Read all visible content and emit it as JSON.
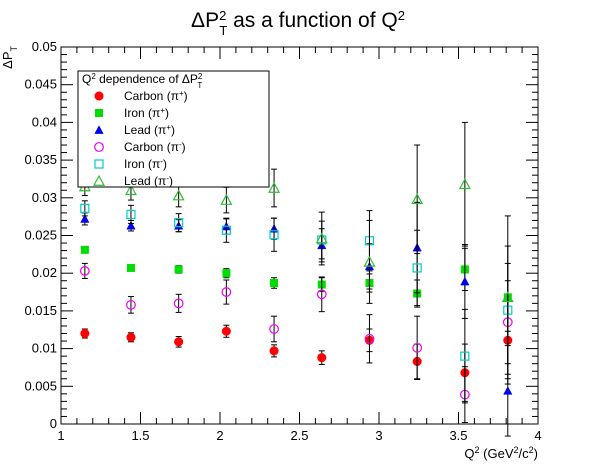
{
  "chart_data": {
    "type": "scatter",
    "title": {
      "main": "ΔP",
      "sup": "2",
      "sub": "T",
      "tail": " as a function of Q",
      "tail_sup": "2"
    },
    "xlabel": {
      "main": "Q",
      "sup": "2",
      "mid": " (GeV",
      "sup2": "2",
      "end": "/c",
      "sup3": "2",
      "close": ")"
    },
    "ylabel": {
      "main": "ΔP",
      "sub": "T"
    },
    "xlim": [
      1,
      4
    ],
    "ylim": [
      0,
      0.05
    ],
    "x_ticks": [
      "1",
      "1.5",
      "2",
      "2.5",
      "3",
      "3.5",
      "4"
    ],
    "y_ticks": [
      "0",
      "0.005",
      "0.01",
      "0.015",
      "0.02",
      "0.025",
      "0.03",
      "0.035",
      "0.04",
      "0.045",
      "0.05"
    ],
    "legend": {
      "title": {
        "main": "Q",
        "sup": "2",
        "mid": " dependence of ΔP",
        "sup2": "2",
        "sub2": "T"
      },
      "placement": "top-left"
    },
    "x": [
      1.15,
      1.44,
      1.74,
      2.04,
      2.34,
      2.64,
      2.94,
      3.24,
      3.54,
      3.81
    ],
    "series": [
      {
        "name": "Carbon (π",
        "charge": "+",
        "name_end": ")",
        "marker": "filled-circle",
        "color": "#ff0000",
        "values": [
          0.012,
          0.0115,
          0.0109,
          0.0123,
          0.0097,
          0.0088,
          0.0111,
          0.0083,
          0.0068,
          0.0111
        ],
        "errors": [
          0.0006,
          0.0006,
          0.0007,
          0.0008,
          0.0008,
          0.0009,
          0.0015,
          0.0023,
          0.0038,
          0.0058
        ]
      },
      {
        "name": "Iron (π",
        "charge": "+",
        "name_end": ")",
        "marker": "filled-square",
        "color": "#00dd00",
        "values": [
          0.0231,
          0.0207,
          0.0205,
          0.02,
          0.0187,
          0.0185,
          0.0187,
          0.0173,
          0.0205,
          0.0168
        ],
        "errors": [
          0.0004,
          0.0004,
          0.0005,
          0.0006,
          0.0007,
          0.0009,
          0.0012,
          0.0018,
          0.0028,
          0.0045
        ]
      },
      {
        "name": "Lead (π",
        "charge": "+",
        "name_end": ")",
        "marker": "filled-triangle",
        "color": "#0000ee",
        "values": [
          0.0272,
          0.0263,
          0.0263,
          0.0262,
          0.0259,
          0.0237,
          0.0209,
          0.0234,
          0.0189,
          0.0044
        ],
        "errors": [
          0.0008,
          0.0007,
          0.0008,
          0.001,
          0.0014,
          0.0022,
          0.003,
          0.006,
          0.0049,
          0.006
        ]
      },
      {
        "name": "Carbon (π",
        "charge": "-",
        "name_end": ")",
        "marker": "open-circle",
        "color": "#ee00ee",
        "values": [
          0.0203,
          0.0158,
          0.016,
          0.0175,
          0.0126,
          0.0172,
          0.0113,
          0.0101,
          0.0039,
          0.0135
        ],
        "errors": [
          0.001,
          0.0011,
          0.0012,
          0.0016,
          0.0017,
          0.0023,
          0.0032,
          0.0042,
          0.0037,
          0.0055
        ]
      },
      {
        "name": "Iron (π",
        "charge": "-",
        "name_end": ")",
        "marker": "open-square",
        "color": "#00cccc",
        "values": [
          0.0286,
          0.0278,
          0.0267,
          0.0257,
          0.0251,
          0.0244,
          0.0243,
          0.0207,
          0.009,
          0.0151
        ],
        "errors": [
          0.001,
          0.0012,
          0.0012,
          0.0016,
          0.0022,
          0.0025,
          0.004,
          0.005,
          0.0062,
          0.0085
        ]
      },
      {
        "name": "Lead (π",
        "charge": "-",
        "name_end": ")",
        "marker": "open-triangle",
        "color": "#33bb33",
        "values": [
          0.0315,
          0.031,
          0.0303,
          0.0297,
          0.0313,
          0.0246,
          0.0215,
          0.0298,
          0.0318,
          0.0168
        ],
        "errors": [
          0.0012,
          0.0013,
          0.0015,
          0.0017,
          0.0025,
          0.0035,
          0.0055,
          0.0072,
          0.0082,
          0.0108
        ]
      }
    ]
  }
}
